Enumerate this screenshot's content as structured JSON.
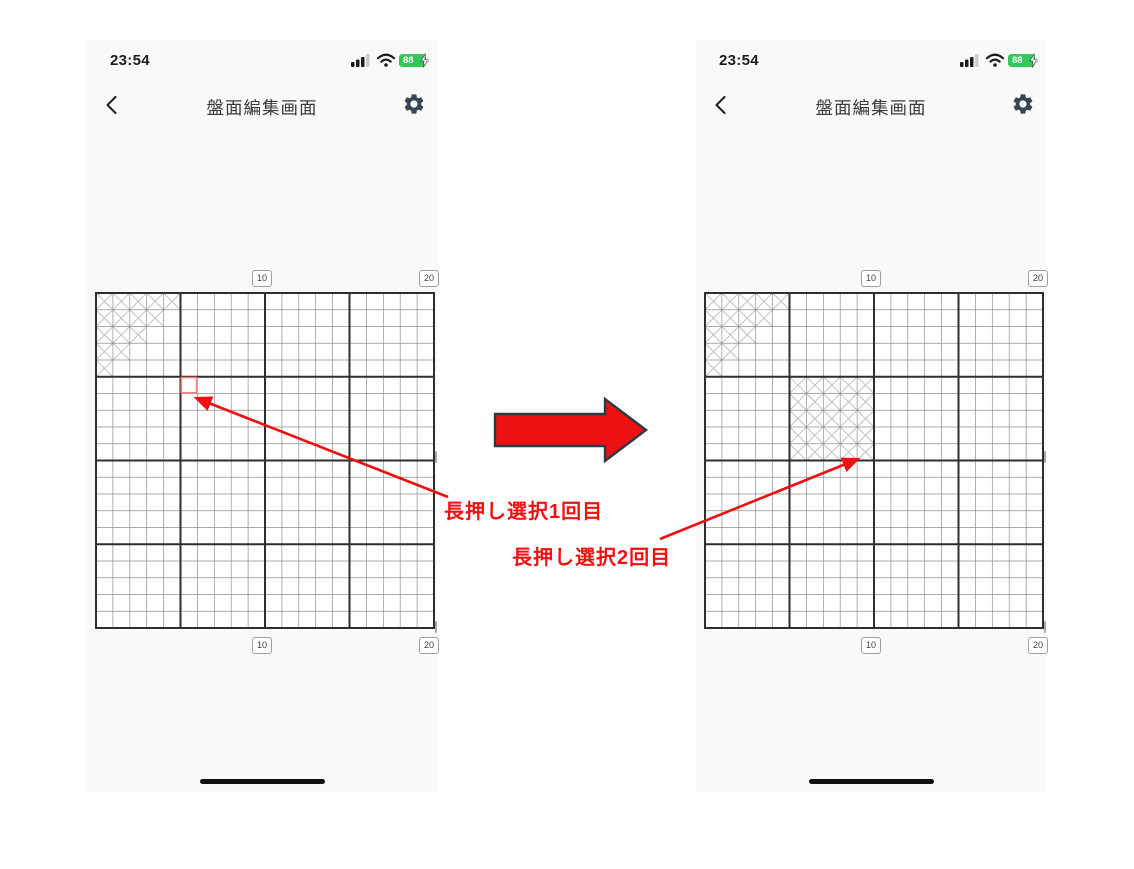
{
  "phones": [
    {
      "name": "before",
      "status": {
        "time": "23:54",
        "battery_level": "88"
      },
      "nav": {
        "title": "盤面編集画面"
      },
      "board": {
        "size": 20,
        "bold_every": 5,
        "top_labels": [
          {
            "text": "10",
            "col": 10
          },
          {
            "text": "20",
            "col": 20
          }
        ],
        "bottom_labels": [
          {
            "text": "10",
            "col": 10
          },
          {
            "text": "20",
            "col": 20
          }
        ],
        "x_cells": [
          [
            1,
            1
          ],
          [
            1,
            2
          ],
          [
            1,
            3
          ],
          [
            1,
            4
          ],
          [
            1,
            5
          ],
          [
            2,
            1
          ],
          [
            2,
            2
          ],
          [
            2,
            3
          ],
          [
            2,
            4
          ],
          [
            3,
            1
          ],
          [
            3,
            2
          ],
          [
            3,
            3
          ],
          [
            4,
            1
          ],
          [
            4,
            2
          ],
          [
            5,
            1
          ]
        ],
        "highlight_cell": [
          6,
          6
        ]
      }
    },
    {
      "name": "after",
      "status": {
        "time": "23:54",
        "battery_level": "88"
      },
      "nav": {
        "title": "盤面編集画面"
      },
      "board": {
        "size": 20,
        "bold_every": 5,
        "top_labels": [
          {
            "text": "10",
            "col": 10
          },
          {
            "text": "20",
            "col": 20
          }
        ],
        "bottom_labels": [
          {
            "text": "10",
            "col": 10
          },
          {
            "text": "20",
            "col": 20
          }
        ],
        "x_cells": [
          [
            1,
            1
          ],
          [
            1,
            2
          ],
          [
            1,
            3
          ],
          [
            1,
            4
          ],
          [
            1,
            5
          ],
          [
            2,
            1
          ],
          [
            2,
            2
          ],
          [
            2,
            3
          ],
          [
            2,
            4
          ],
          [
            3,
            1
          ],
          [
            3,
            2
          ],
          [
            3,
            3
          ],
          [
            4,
            1
          ],
          [
            4,
            2
          ],
          [
            5,
            1
          ],
          [
            6,
            6
          ],
          [
            6,
            7
          ],
          [
            6,
            8
          ],
          [
            6,
            9
          ],
          [
            6,
            10
          ],
          [
            7,
            6
          ],
          [
            7,
            7
          ],
          [
            7,
            8
          ],
          [
            7,
            9
          ],
          [
            7,
            10
          ],
          [
            8,
            6
          ],
          [
            8,
            7
          ],
          [
            8,
            8
          ],
          [
            8,
            9
          ],
          [
            8,
            10
          ],
          [
            9,
            6
          ],
          [
            9,
            7
          ],
          [
            9,
            8
          ],
          [
            9,
            9
          ],
          [
            9,
            10
          ],
          [
            10,
            6
          ],
          [
            10,
            7
          ],
          [
            10,
            8
          ],
          [
            10,
            9
          ],
          [
            10,
            10
          ]
        ],
        "highlight_cell": null
      }
    }
  ],
  "annotations": {
    "first": {
      "text": "長押し選択1回目",
      "points_to": "left board cell row 6 col 6"
    },
    "second": {
      "text": "長押し選択2回目",
      "points_to": "right board cell row 10 col 10"
    }
  },
  "colors": {
    "screen_bg": "#f9faf8",
    "board_bg": "#ffffff",
    "grid_thin": "#8f8f8f",
    "grid_bold": "#2e2e2e",
    "x_mark": "#bfbfbf",
    "highlight_red": "#f08080",
    "annotation_red": "#ee1111",
    "arrow_fill": "#ee1111",
    "arrow_outline": "#2c3a47",
    "battery_green": "#34c759",
    "text_dark": "#1c1c1e",
    "title_color": "#3a3a3a",
    "label_border": "#9e9e9e",
    "label_text": "#3c3c3c",
    "tick_gray": "#a8a8a8",
    "home_bar": "#111111"
  }
}
